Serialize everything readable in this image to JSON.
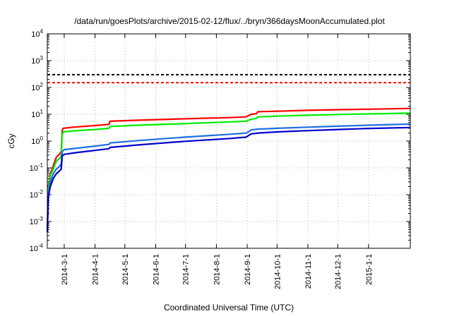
{
  "chart_data": {
    "type": "line",
    "title": "/data/run/goesPlots/archive/2015-02-12/flux/../bryn/366daysMoonAccumulated.plot",
    "xlabel": "Coordinated Universal Time (UTC)",
    "ylabel": "cGy",
    "yscale": "log",
    "ylim": [
      0.0001,
      10000
    ],
    "xlim": [
      "2014-02-12",
      "2015-02-12"
    ],
    "grid": true,
    "x_ticks": [
      "2014-3-1",
      "2014-4-1",
      "2014-5-1",
      "2014-6-1",
      "2014-7-1",
      "2014-8-1",
      "2014-9-1",
      "2014-10-1",
      "2014-11-1",
      "2014-12-1",
      "2015-1-1"
    ],
    "y_ticks": [
      {
        "base": "10",
        "exp": "-4",
        "value": 0.0001
      },
      {
        "base": "10",
        "exp": "-3",
        "value": 0.001
      },
      {
        "base": "10",
        "exp": "-2",
        "value": 0.01
      },
      {
        "base": "10",
        "exp": "-1",
        "value": 0.1
      },
      {
        "base": "10",
        "exp": "0",
        "value": 1
      },
      {
        "base": "10",
        "exp": "1",
        "value": 10
      },
      {
        "base": "10",
        "exp": "2",
        "value": 100
      },
      {
        "base": "10",
        "exp": "3",
        "value": 1000
      },
      {
        "base": "10",
        "exp": "4",
        "value": 10000
      }
    ],
    "hlines": [
      {
        "value": 300,
        "color": "#000000",
        "style": "dashed"
      },
      {
        "value": 150,
        "color": "#ff0000",
        "style": "dashed"
      }
    ],
    "series": [
      {
        "color": "#ff0000",
        "points": [
          [
            "2014-02-12",
            0.0006
          ],
          [
            "2014-02-13",
            0.02
          ],
          [
            "2014-02-15",
            0.06
          ],
          [
            "2014-02-18",
            0.12
          ],
          [
            "2014-02-21",
            0.25
          ],
          [
            "2014-02-24",
            0.32
          ],
          [
            "2014-02-26",
            0.4
          ],
          [
            "2014-02-27",
            2.5
          ],
          [
            "2014-02-28",
            3.0
          ],
          [
            "2014-03-10",
            3.3
          ],
          [
            "2014-04-01",
            3.8
          ],
          [
            "2014-04-15",
            4.2
          ],
          [
            "2014-04-16",
            5.5
          ],
          [
            "2014-05-15",
            6.0
          ],
          [
            "2014-07-01",
            6.8
          ],
          [
            "2014-08-15",
            7.5
          ],
          [
            "2014-08-31",
            8.0
          ],
          [
            "2014-09-01",
            8.5
          ],
          [
            "2014-09-05",
            10.0
          ],
          [
            "2014-09-10",
            10.5
          ],
          [
            "2014-09-12",
            12.5
          ],
          [
            "2014-10-01",
            13.0
          ],
          [
            "2014-11-01",
            14.0
          ],
          [
            "2014-12-01",
            14.8
          ],
          [
            "2015-01-01",
            15.5
          ],
          [
            "2015-02-12",
            16.5
          ]
        ]
      },
      {
        "color": "#00ee00",
        "points": [
          [
            "2014-02-12",
            0.0004
          ],
          [
            "2014-02-13",
            0.015
          ],
          [
            "2014-02-15",
            0.05
          ],
          [
            "2014-02-18",
            0.09
          ],
          [
            "2014-02-21",
            0.18
          ],
          [
            "2014-02-24",
            0.22
          ],
          [
            "2014-02-26",
            0.28
          ],
          [
            "2014-02-27",
            1.8
          ],
          [
            "2014-02-28",
            2.2
          ],
          [
            "2014-03-10",
            2.4
          ],
          [
            "2014-04-01",
            2.7
          ],
          [
            "2014-04-15",
            3.0
          ],
          [
            "2014-04-16",
            3.5
          ],
          [
            "2014-05-15",
            3.9
          ],
          [
            "2014-07-01",
            4.5
          ],
          [
            "2014-08-15",
            5.2
          ],
          [
            "2014-08-31",
            5.5
          ],
          [
            "2014-09-01",
            5.8
          ],
          [
            "2014-09-05",
            6.5
          ],
          [
            "2014-09-10",
            7.0
          ],
          [
            "2014-09-12",
            8.0
          ],
          [
            "2014-10-01",
            8.5
          ],
          [
            "2014-11-01",
            9.2
          ],
          [
            "2014-12-01",
            9.8
          ],
          [
            "2015-01-01",
            10.3
          ],
          [
            "2015-02-12",
            11.0
          ]
        ]
      },
      {
        "color": "#1e6fdf",
        "points": [
          [
            "2014-02-12",
            0.0005
          ],
          [
            "2014-02-13",
            0.01
          ],
          [
            "2014-02-15",
            0.03
          ],
          [
            "2014-02-18",
            0.06
          ],
          [
            "2014-02-21",
            0.09
          ],
          [
            "2014-02-24",
            0.11
          ],
          [
            "2014-02-26",
            0.14
          ],
          [
            "2014-02-27",
            0.4
          ],
          [
            "2014-03-01",
            0.48
          ],
          [
            "2014-03-15",
            0.55
          ],
          [
            "2014-04-01",
            0.65
          ],
          [
            "2014-04-15",
            0.75
          ],
          [
            "2014-04-16",
            0.85
          ],
          [
            "2014-05-15",
            1.05
          ],
          [
            "2014-07-01",
            1.4
          ],
          [
            "2014-08-15",
            1.8
          ],
          [
            "2014-08-31",
            2.0
          ],
          [
            "2014-09-01",
            2.1
          ],
          [
            "2014-09-05",
            2.6
          ],
          [
            "2014-09-12",
            2.8
          ],
          [
            "2014-10-01",
            3.0
          ],
          [
            "2014-11-01",
            3.3
          ],
          [
            "2014-12-01",
            3.6
          ],
          [
            "2015-01-01",
            3.9
          ],
          [
            "2015-02-12",
            4.3
          ]
        ]
      },
      {
        "color": "#0000cc",
        "points": [
          [
            "2014-02-12",
            0.0004
          ],
          [
            "2014-02-13",
            0.008
          ],
          [
            "2014-02-15",
            0.02
          ],
          [
            "2014-02-18",
            0.04
          ],
          [
            "2014-02-21",
            0.06
          ],
          [
            "2014-02-24",
            0.075
          ],
          [
            "2014-02-26",
            0.09
          ],
          [
            "2014-02-27",
            0.28
          ],
          [
            "2014-03-01",
            0.32
          ],
          [
            "2014-03-15",
            0.38
          ],
          [
            "2014-04-01",
            0.45
          ],
          [
            "2014-04-15",
            0.52
          ],
          [
            "2014-04-16",
            0.58
          ],
          [
            "2014-05-15",
            0.72
          ],
          [
            "2014-07-01",
            0.98
          ],
          [
            "2014-08-15",
            1.25
          ],
          [
            "2014-08-31",
            1.4
          ],
          [
            "2014-09-01",
            1.5
          ],
          [
            "2014-09-05",
            1.85
          ],
          [
            "2014-09-12",
            2.0
          ],
          [
            "2014-10-01",
            2.2
          ],
          [
            "2014-11-01",
            2.45
          ],
          [
            "2014-12-01",
            2.7
          ],
          [
            "2015-01-01",
            2.95
          ],
          [
            "2015-02-12",
            3.2
          ]
        ]
      }
    ]
  }
}
